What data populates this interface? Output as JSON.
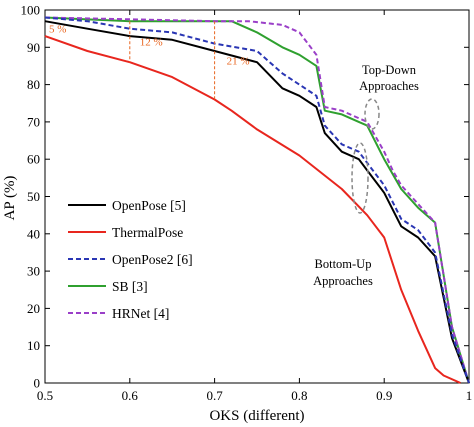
{
  "chart_data": {
    "type": "line",
    "xlabel": "OKS (different)",
    "ylabel": "AP (%)",
    "xlim": [
      0.5,
      1.0
    ],
    "ylim": [
      0,
      100
    ],
    "xticks": [
      "0.5",
      "0.6",
      "0.7",
      "0.8",
      "0.9",
      "1"
    ],
    "yticks": [
      "0",
      "10",
      "20",
      "30",
      "40",
      "50",
      "60",
      "70",
      "80",
      "90",
      "100"
    ],
    "grid": false,
    "legend_position": "bottom-left",
    "series": [
      {
        "name": "OpenPose [5]",
        "color": "#000000",
        "style": "solid",
        "x": [
          0.5,
          0.55,
          0.6,
          0.65,
          0.7,
          0.75,
          0.78,
          0.8,
          0.82,
          0.83,
          0.85,
          0.87,
          0.88,
          0.9,
          0.92,
          0.94,
          0.96,
          0.98,
          1.0
        ],
        "y": [
          97,
          95,
          93,
          92,
          89,
          86,
          79,
          77,
          74,
          67,
          62,
          60,
          57,
          51,
          42,
          39,
          34,
          12,
          0
        ]
      },
      {
        "name": "ThermalPose",
        "color": "#e8261e",
        "style": "solid",
        "x": [
          0.5,
          0.55,
          0.6,
          0.65,
          0.7,
          0.72,
          0.75,
          0.8,
          0.85,
          0.88,
          0.9,
          0.92,
          0.94,
          0.96,
          0.97,
          0.99
        ],
        "y": [
          93,
          89,
          86,
          82,
          76,
          73,
          68,
          61,
          52,
          45,
          39,
          25,
          14,
          4,
          2,
          0
        ]
      },
      {
        "name": "OpenPose2 [6]",
        "color": "#2a36b4",
        "style": "dashed",
        "x": [
          0.5,
          0.55,
          0.6,
          0.65,
          0.7,
          0.75,
          0.78,
          0.8,
          0.82,
          0.83,
          0.85,
          0.87,
          0.88,
          0.9,
          0.92,
          0.94,
          0.96,
          0.98,
          1.0
        ],
        "y": [
          98,
          97,
          95,
          94,
          91,
          89,
          83,
          80,
          77,
          69,
          64,
          62,
          59,
          53,
          44,
          41,
          35,
          13,
          0
        ]
      },
      {
        "name": "SB [3]",
        "color": "#2fa02f",
        "style": "solid",
        "x": [
          0.5,
          0.6,
          0.7,
          0.72,
          0.75,
          0.78,
          0.8,
          0.82,
          0.83,
          0.85,
          0.87,
          0.88,
          0.9,
          0.91,
          0.92,
          0.94,
          0.96,
          0.98,
          1.0
        ],
        "y": [
          98,
          97,
          97,
          97,
          94,
          90,
          88,
          85,
          73,
          72,
          70,
          69,
          60,
          56,
          52,
          47,
          43,
          15,
          0
        ]
      },
      {
        "name": "HRNet [4]",
        "color": "#9a3fc8",
        "style": "dashed",
        "x": [
          0.5,
          0.6,
          0.7,
          0.74,
          0.78,
          0.8,
          0.82,
          0.83,
          0.85,
          0.87,
          0.88,
          0.9,
          0.91,
          0.92,
          0.94,
          0.96,
          0.98,
          1.0
        ],
        "y": [
          98,
          97.5,
          97,
          97,
          96,
          94,
          88,
          74,
          73,
          71,
          70,
          62,
          57,
          53,
          48,
          43,
          15,
          0
        ]
      }
    ],
    "gap_annotations": [
      {
        "x": 0.5,
        "y_from": 97,
        "y_to": 93,
        "label": "5 %"
      },
      {
        "x": 0.6,
        "y_from": 97,
        "y_to": 86,
        "label": "12 %"
      },
      {
        "x": 0.7,
        "y_from": 97,
        "y_to": 76,
        "label": "21 %"
      }
    ],
    "text_annotations": [
      {
        "lines": [
          "Top-Down",
          "Approaches"
        ]
      },
      {
        "lines": [
          "Bottom-Up",
          "Approaches"
        ]
      }
    ]
  }
}
